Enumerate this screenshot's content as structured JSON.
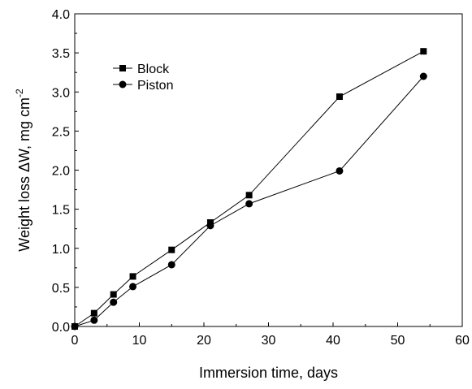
{
  "chart_data": {
    "type": "line",
    "x": [
      0,
      3,
      6,
      9,
      15,
      21,
      27,
      41,
      54
    ],
    "series": [
      {
        "name": "Block",
        "marker": "square",
        "x": [
          0,
          3,
          6,
          9,
          15,
          21,
          27,
          41,
          54
        ],
        "values": [
          0.0,
          0.17,
          0.41,
          0.64,
          0.98,
          1.33,
          1.68,
          2.94,
          3.52
        ]
      },
      {
        "name": "Piston",
        "marker": "circle",
        "x": [
          0,
          3,
          6,
          9,
          15,
          21,
          27,
          41,
          54
        ],
        "values": [
          0.0,
          0.08,
          0.31,
          0.51,
          0.79,
          1.29,
          1.57,
          1.99,
          3.2
        ]
      }
    ],
    "xlabel": "Immersion time, days",
    "ylabel_prefix": "Weight loss ",
    "ylabel_delta": "ΔW",
    "ylabel_units": ", mg cm",
    "ylabel_exponent": "-2",
    "xlim": [
      0,
      60
    ],
    "ylim": [
      0.0,
      4.0
    ],
    "x_ticks": [
      "0",
      "10",
      "20",
      "30",
      "40",
      "50",
      "60"
    ],
    "y_ticks": [
      "0.0",
      "0.5",
      "1.0",
      "1.5",
      "2.0",
      "2.5",
      "3.0",
      "3.5",
      "4.0"
    ],
    "grid": false,
    "legend_position": "top-left",
    "line_color": "#000000"
  }
}
